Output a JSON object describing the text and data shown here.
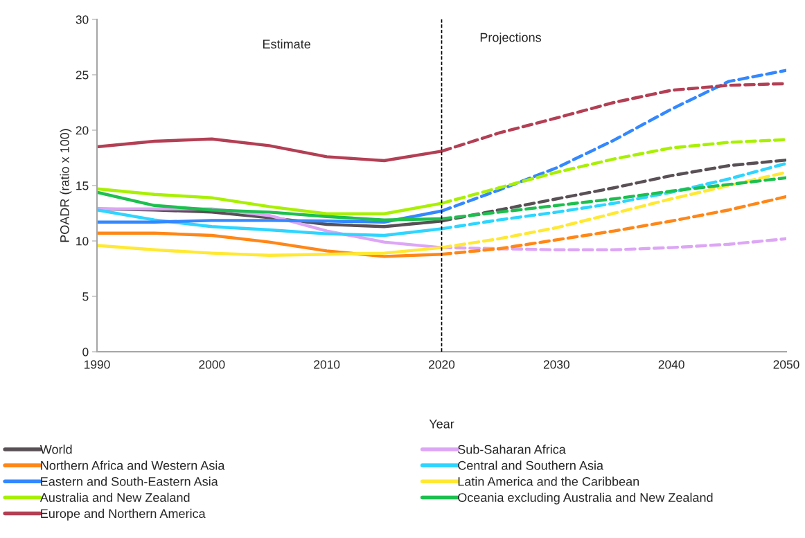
{
  "chart_data": {
    "type": "line",
    "xlabel": "Year",
    "ylabel": "POADR (ratio x 100)",
    "xlim": [
      1990,
      2050
    ],
    "xticks": [
      1990,
      2000,
      2010,
      2020,
      2030,
      2040,
      2050
    ],
    "ylim": [
      0,
      30
    ],
    "yticks": [
      0,
      5,
      10,
      15,
      20,
      25,
      30
    ],
    "grid": false,
    "legend": "bottom",
    "annotations": [
      "Estimate",
      "Projections"
    ],
    "ref_lines": [
      {
        "axis": "x",
        "value": 2020,
        "color": "#000000",
        "line_style": "dashed"
      }
    ],
    "series": [
      {
        "name": "World",
        "color": "#595056",
        "line_style": "solid",
        "x": [
          1990,
          1995,
          2000,
          2005,
          2010,
          2015,
          2020
        ],
        "values": [
          12.9,
          12.8,
          12.6,
          12.1,
          11.5,
          11.3,
          11.8
        ]
      },
      {
        "name": "Sub-Saharan Africa",
        "color": "#dda6f5",
        "line_style": "solid",
        "x": [
          1990,
          1995,
          2000,
          2005,
          2010,
          2015,
          2020
        ],
        "values": [
          12.9,
          12.9,
          12.9,
          12.3,
          10.9,
          9.9,
          9.4
        ]
      },
      {
        "name": "Northern Africa and Western Asia",
        "color": "#ff8717",
        "line_style": "solid",
        "x": [
          1990,
          1995,
          2000,
          2005,
          2010,
          2015,
          2020
        ],
        "values": [
          10.7,
          10.7,
          10.5,
          9.9,
          9.1,
          8.6,
          8.8
        ]
      },
      {
        "name": "Central and Southern Asia",
        "color": "#2ed5ff",
        "line_style": "solid",
        "x": [
          1990,
          1995,
          2000,
          2005,
          2010,
          2015,
          2020
        ],
        "values": [
          12.8,
          11.9,
          11.3,
          11.0,
          10.65,
          10.5,
          11.1
        ]
      },
      {
        "name": "Eastern and South-Eastern Asia",
        "color": "#3388ff",
        "line_style": "solid",
        "x": [
          1990,
          1995,
          2000,
          2005,
          2010,
          2015,
          2020
        ],
        "values": [
          11.7,
          11.7,
          11.85,
          11.85,
          11.8,
          11.7,
          12.7
        ]
      },
      {
        "name": "Latin America and the Caribbean",
        "color": "#ffe933",
        "line_style": "solid",
        "x": [
          1990,
          1995,
          2000,
          2005,
          2010,
          2015,
          2020
        ],
        "values": [
          9.6,
          9.2,
          8.9,
          8.7,
          8.8,
          8.9,
          9.4
        ]
      },
      {
        "name": "Australia and New Zealand",
        "color": "#a8f000",
        "line_style": "solid",
        "x": [
          1990,
          1995,
          2000,
          2005,
          2010,
          2015,
          2020
        ],
        "values": [
          14.7,
          14.2,
          13.9,
          13.1,
          12.45,
          12.45,
          13.4
        ]
      },
      {
        "name": "Oceania excluding Australia and New Zealand",
        "color": "#1dbf4f",
        "line_style": "solid",
        "x": [
          1990,
          1995,
          2000,
          2005,
          2010,
          2015,
          2020
        ],
        "values": [
          14.4,
          13.2,
          12.8,
          12.6,
          12.2,
          11.9,
          12.0
        ]
      },
      {
        "name": "Europe and Northern America",
        "color": "#b33f54",
        "line_style": "solid",
        "x": [
          1990,
          1995,
          2000,
          2005,
          2010,
          2015,
          2020
        ],
        "values": [
          18.5,
          19.0,
          19.2,
          18.6,
          17.6,
          17.25,
          18.1
        ]
      },
      {
        "color": "#595056",
        "line_style": "dashed",
        "x": [
          2020,
          2025,
          2030,
          2035,
          2040,
          2045,
          2050
        ],
        "values": [
          11.8,
          12.8,
          13.8,
          14.8,
          15.9,
          16.8,
          17.3
        ]
      },
      {
        "color": "#dda6f5",
        "line_style": "dashed",
        "x": [
          2020,
          2025,
          2030,
          2035,
          2040,
          2045,
          2050
        ],
        "values": [
          9.4,
          9.3,
          9.2,
          9.2,
          9.4,
          9.7,
          10.2
        ]
      },
      {
        "color": "#ff8717",
        "line_style": "dashed",
        "x": [
          2020,
          2025,
          2030,
          2035,
          2040,
          2045,
          2050
        ],
        "values": [
          8.8,
          9.3,
          10.1,
          10.9,
          11.8,
          12.8,
          14.0
        ]
      },
      {
        "color": "#2ed5ff",
        "line_style": "dashed",
        "x": [
          2020,
          2025,
          2030,
          2035,
          2040,
          2045,
          2050
        ],
        "values": [
          11.1,
          11.9,
          12.6,
          13.4,
          14.4,
          15.6,
          17.0
        ]
      },
      {
        "color": "#3388ff",
        "line_style": "dashed",
        "x": [
          2020,
          2025,
          2030,
          2035,
          2040,
          2045,
          2050
        ],
        "values": [
          12.7,
          14.6,
          16.6,
          19.1,
          21.9,
          24.4,
          25.4
        ]
      },
      {
        "color": "#ffe933",
        "line_style": "dashed",
        "x": [
          2020,
          2025,
          2030,
          2035,
          2040,
          2045,
          2050
        ],
        "values": [
          9.4,
          10.2,
          11.2,
          12.5,
          13.8,
          15.0,
          16.2
        ]
      },
      {
        "color": "#a8f000",
        "line_style": "dashed",
        "x": [
          2020,
          2025,
          2030,
          2035,
          2040,
          2045,
          2050
        ],
        "values": [
          13.4,
          14.8,
          16.2,
          17.4,
          18.4,
          18.9,
          19.15
        ]
      },
      {
        "color": "#1dbf4f",
        "line_style": "dashed",
        "x": [
          2020,
          2025,
          2030,
          2035,
          2040,
          2045,
          2050
        ],
        "values": [
          12.0,
          12.6,
          13.2,
          13.8,
          14.5,
          15.1,
          15.7
        ]
      },
      {
        "color": "#b33f54",
        "line_style": "dashed",
        "x": [
          2020,
          2025,
          2030,
          2035,
          2040,
          2045,
          2050
        ],
        "values": [
          18.1,
          19.75,
          21.1,
          22.5,
          23.6,
          24.05,
          24.2
        ]
      }
    ]
  }
}
